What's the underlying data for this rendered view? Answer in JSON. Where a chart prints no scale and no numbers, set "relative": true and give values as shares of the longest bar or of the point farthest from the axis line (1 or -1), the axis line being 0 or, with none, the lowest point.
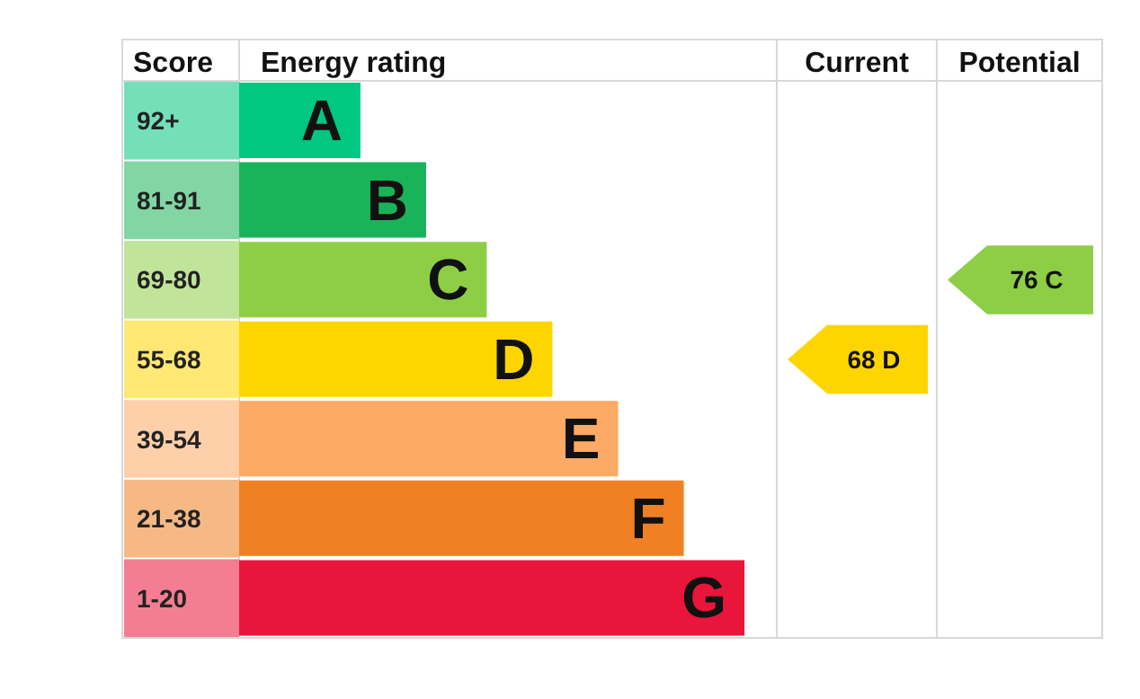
{
  "chart_data": {
    "type": "bar",
    "orientation": "horizontal",
    "relative": true,
    "categories": [
      "A",
      "B",
      "C",
      "D",
      "E",
      "F",
      "G"
    ],
    "values": [
      0.24,
      0.37,
      0.49,
      0.62,
      0.75,
      0.88,
      1
    ],
    "colors": [
      "#00c781",
      "#19b459",
      "#8dce46",
      "#ffd500",
      "#fcaa65",
      "#ef8023",
      "#e9153b"
    ],
    "annotations": [
      "Score",
      "Energy rating",
      "Current",
      "Potential",
      "92+",
      "81-91",
      "69-80",
      "55-68",
      "39-54",
      "21-38",
      "1-20",
      "68 D",
      "76 C"
    ]
  }
}
